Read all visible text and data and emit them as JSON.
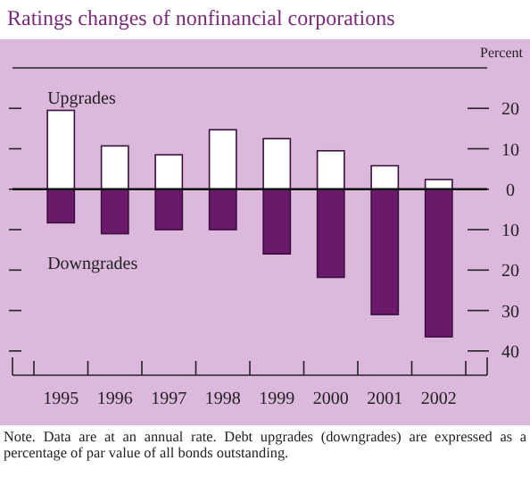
{
  "chart_data": {
    "type": "bar",
    "title": "Ratings changes of nonfinancial corporations",
    "ylabel": "Percent",
    "categories": [
      "1995",
      "1996",
      "1997",
      "1998",
      "1999",
      "2000",
      "2001",
      "2002"
    ],
    "series": [
      {
        "name": "Upgrades",
        "color": "#ffffff",
        "values": [
          19.5,
          10.7,
          8.5,
          14.7,
          12.5,
          9.5,
          5.8,
          2.4
        ]
      },
      {
        "name": "Downgrades",
        "color": "#6b1a6b",
        "values": [
          -8.3,
          -11,
          -10,
          -10,
          -16,
          -21.8,
          -31,
          -36.5
        ]
      }
    ],
    "stacked": true,
    "ylim": [
      -46,
      30
    ],
    "yticks": [
      {
        "value": -40,
        "label": "40"
      },
      {
        "value": -30,
        "label": "30"
      },
      {
        "value": -20,
        "label": "20"
      },
      {
        "value": -10,
        "label": "10"
      },
      0,
      10,
      20
    ],
    "legend": false,
    "annotations": [
      "Note. Data are at an annual rate. Debt upgrades (downgrades) are expressed as a percentage of par value of all bonds outstanding."
    ]
  }
}
